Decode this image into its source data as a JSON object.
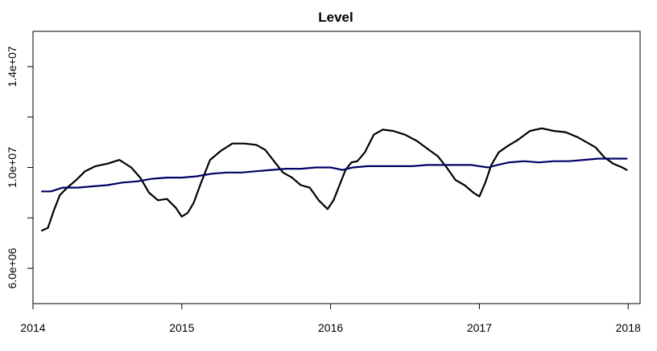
{
  "chart_data": {
    "type": "line",
    "title": "Level",
    "xlabel": "",
    "ylabel": "",
    "xlim": [
      2014.0,
      2018.08
    ],
    "ylim": [
      4600000,
      15400000
    ],
    "grid": false,
    "x_ticks": [
      2014,
      2015,
      2016,
      2017,
      2018
    ],
    "x_tick_labels": [
      "2014",
      "2015",
      "2016",
      "2017",
      "2018"
    ],
    "y_ticks": [
      6000000,
      10000000,
      14000000
    ],
    "y_tick_labels": [
      "6.0e+06",
      "1.0e+07",
      "1.4e+07"
    ],
    "y_minor_ticks": [
      8000000,
      12000000
    ],
    "series": [
      {
        "color": "#000000",
        "x": [
          2014.06,
          2014.1,
          2014.14,
          2014.18,
          2014.23,
          2014.29,
          2014.35,
          2014.42,
          2014.5,
          2014.58,
          2014.66,
          2014.72,
          2014.78,
          2014.84,
          2014.9,
          2014.96,
          2015.0,
          2015.04,
          2015.08,
          2015.13,
          2015.19,
          2015.26,
          2015.34,
          2015.42,
          2015.5,
          2015.56,
          2015.62,
          2015.68,
          2015.74,
          2015.8,
          2015.86,
          2015.92,
          2015.98,
          2016.02,
          2016.06,
          2016.1,
          2016.14,
          2016.18,
          2016.23,
          2016.29,
          2016.35,
          2016.42,
          2016.5,
          2016.58,
          2016.66,
          2016.72,
          2016.78,
          2016.84,
          2016.9,
          2016.96,
          2017.0,
          2017.04,
          2017.08,
          2017.13,
          2017.19,
          2017.26,
          2017.34,
          2017.42,
          2017.5,
          2017.58,
          2017.66,
          2017.72,
          2017.78,
          2017.84,
          2017.9,
          2017.96,
          2017.99
        ],
        "values": [
          7500000,
          7600000,
          8300000,
          8900000,
          9200000,
          9500000,
          9850000,
          10050000,
          10150000,
          10300000,
          10000000,
          9600000,
          9000000,
          8700000,
          8750000,
          8400000,
          8050000,
          8200000,
          8600000,
          9400000,
          10300000,
          10650000,
          10950000,
          10950000,
          10900000,
          10700000,
          10250000,
          9800000,
          9600000,
          9300000,
          9200000,
          8700000,
          8350000,
          8700000,
          9300000,
          9900000,
          10200000,
          10250000,
          10600000,
          11300000,
          11500000,
          11450000,
          11300000,
          11050000,
          10700000,
          10450000,
          10000000,
          9500000,
          9300000,
          9000000,
          8850000,
          9400000,
          10100000,
          10600000,
          10850000,
          11100000,
          11450000,
          11550000,
          11450000,
          11400000,
          11200000,
          11000000,
          10800000,
          10400000,
          10150000,
          10000000,
          9900000
        ]
      },
      {
        "color": "#000066",
        "x": [
          2014.06,
          2014.12,
          2014.2,
          2014.3,
          2014.4,
          2014.5,
          2014.6,
          2014.7,
          2014.8,
          2014.9,
          2015.0,
          2015.1,
          2015.2,
          2015.3,
          2015.4,
          2015.5,
          2015.6,
          2015.7,
          2015.8,
          2015.9,
          2016.0,
          2016.08,
          2016.15,
          2016.25,
          2016.35,
          2016.45,
          2016.55,
          2016.65,
          2016.75,
          2016.85,
          2016.95,
          2017.0,
          2017.06,
          2017.12,
          2017.2,
          2017.3,
          2017.4,
          2017.5,
          2017.6,
          2017.7,
          2017.8,
          2017.9,
          2017.99
        ],
        "values": [
          9050000,
          9050000,
          9200000,
          9200000,
          9250000,
          9300000,
          9400000,
          9450000,
          9550000,
          9600000,
          9600000,
          9650000,
          9750000,
          9800000,
          9800000,
          9850000,
          9900000,
          9950000,
          9950000,
          10000000,
          10000000,
          9900000,
          10000000,
          10050000,
          10050000,
          10050000,
          10050000,
          10100000,
          10100000,
          10100000,
          10100000,
          10050000,
          10000000,
          10100000,
          10200000,
          10250000,
          10200000,
          10250000,
          10250000,
          10300000,
          10350000,
          10350000,
          10350000
        ]
      }
    ]
  }
}
